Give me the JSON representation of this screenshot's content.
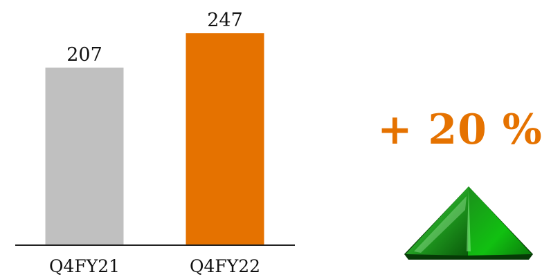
{
  "chart_data": {
    "type": "bar",
    "categories": [
      "Q4FY21",
      "Q4FY22"
    ],
    "values": [
      207,
      247
    ],
    "data_labels": [
      "207",
      "247"
    ],
    "colors": [
      "#c0c0c0",
      "#e57200"
    ],
    "ylim": [
      0,
      260
    ],
    "grid": false,
    "title": "",
    "xlabel": "",
    "ylabel": ""
  },
  "change": {
    "text": "+ 20 %",
    "color": "#e57200",
    "icon": "green-up-arrow-icon"
  }
}
